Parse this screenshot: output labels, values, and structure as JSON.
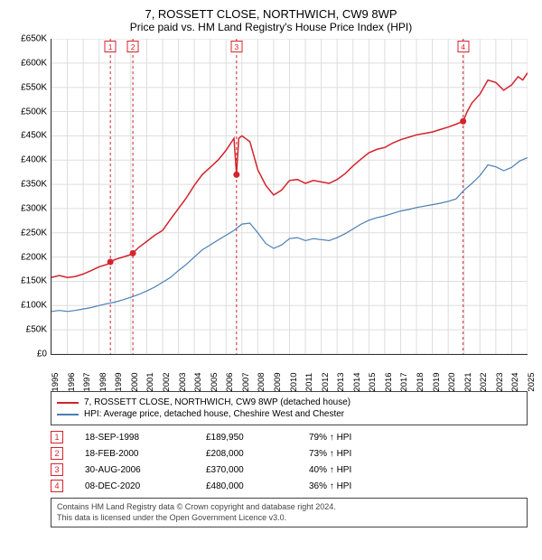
{
  "title": "7, ROSSETT CLOSE, NORTHWICH, CW9 8WP",
  "subtitle": "Price paid vs. HM Land Registry's House Price Index (HPI)",
  "chart": {
    "type": "line",
    "background_color": "#ffffff",
    "grid_color": "#dddddd",
    "axis_color": "#333333",
    "label_fontsize": 10,
    "x": {
      "min": 1995,
      "max": 2025,
      "ticks": [
        1995,
        1996,
        1997,
        1998,
        1999,
        2000,
        2001,
        2002,
        2003,
        2004,
        2005,
        2006,
        2007,
        2008,
        2009,
        2010,
        2011,
        2012,
        2013,
        2014,
        2015,
        2016,
        2017,
        2018,
        2019,
        2020,
        2021,
        2022,
        2023,
        2024,
        2025
      ],
      "tick_label_rotation": -90
    },
    "y": {
      "min": 0,
      "max": 650000,
      "ticks": [
        0,
        50000,
        100000,
        150000,
        200000,
        250000,
        300000,
        350000,
        400000,
        450000,
        500000,
        550000,
        600000,
        650000
      ],
      "tick_labels": [
        "£0",
        "£50K",
        "£100K",
        "£150K",
        "£200K",
        "£250K",
        "£300K",
        "£350K",
        "£400K",
        "£450K",
        "£500K",
        "£550K",
        "£600K",
        "£650K"
      ]
    },
    "series": [
      {
        "name": "7, ROSSETT CLOSE, NORTHWICH, CW9 8WP (detached house)",
        "color": "#d4232c",
        "line_width": 1.5,
        "data": [
          [
            1995,
            158000
          ],
          [
            1995.5,
            162000
          ],
          [
            1996,
            158000
          ],
          [
            1996.5,
            160000
          ],
          [
            1997,
            165000
          ],
          [
            1997.5,
            172000
          ],
          [
            1998,
            180000
          ],
          [
            1998.5,
            185000
          ],
          [
            1998.71,
            189950
          ],
          [
            1999,
            195000
          ],
          [
            1999.5,
            200000
          ],
          [
            2000,
            205000
          ],
          [
            2000.13,
            208000
          ],
          [
            2000.5,
            220000
          ],
          [
            2001,
            232000
          ],
          [
            2001.5,
            245000
          ],
          [
            2002,
            255000
          ],
          [
            2002.5,
            278000
          ],
          [
            2003,
            300000
          ],
          [
            2003.5,
            322000
          ],
          [
            2004,
            348000
          ],
          [
            2004.5,
            370000
          ],
          [
            2005,
            385000
          ],
          [
            2005.5,
            400000
          ],
          [
            2006,
            420000
          ],
          [
            2006.5,
            445000
          ],
          [
            2006.66,
            370000
          ],
          [
            2006.8,
            445000
          ],
          [
            2007,
            450000
          ],
          [
            2007.5,
            438000
          ],
          [
            2008,
            380000
          ],
          [
            2008.5,
            348000
          ],
          [
            2009,
            328000
          ],
          [
            2009.5,
            338000
          ],
          [
            2010,
            358000
          ],
          [
            2010.5,
            360000
          ],
          [
            2011,
            352000
          ],
          [
            2011.5,
            358000
          ],
          [
            2012,
            355000
          ],
          [
            2012.5,
            352000
          ],
          [
            2013,
            360000
          ],
          [
            2013.5,
            372000
          ],
          [
            2014,
            388000
          ],
          [
            2014.5,
            402000
          ],
          [
            2015,
            415000
          ],
          [
            2015.5,
            422000
          ],
          [
            2016,
            426000
          ],
          [
            2016.5,
            435000
          ],
          [
            2017,
            442000
          ],
          [
            2017.5,
            447000
          ],
          [
            2018,
            452000
          ],
          [
            2018.5,
            455000
          ],
          [
            2019,
            458000
          ],
          [
            2019.5,
            463000
          ],
          [
            2020,
            468000
          ],
          [
            2020.5,
            474000
          ],
          [
            2020.94,
            480000
          ],
          [
            2021.2,
            500000
          ],
          [
            2021.5,
            518000
          ],
          [
            2022,
            536000
          ],
          [
            2022.5,
            565000
          ],
          [
            2023,
            560000
          ],
          [
            2023.5,
            544000
          ],
          [
            2024,
            555000
          ],
          [
            2024.4,
            572000
          ],
          [
            2024.7,
            565000
          ],
          [
            2025,
            580000
          ]
        ]
      },
      {
        "name": "HPI: Average price, detached house, Cheshire West and Chester",
        "color": "#4a7fb5",
        "line_width": 1.2,
        "data": [
          [
            1995,
            88000
          ],
          [
            1995.5,
            90000
          ],
          [
            1996,
            88000
          ],
          [
            1996.5,
            90000
          ],
          [
            1997,
            93000
          ],
          [
            1997.5,
            96000
          ],
          [
            1998,
            100000
          ],
          [
            1998.5,
            104000
          ],
          [
            1999,
            107000
          ],
          [
            1999.5,
            112000
          ],
          [
            2000,
            117000
          ],
          [
            2000.5,
            123000
          ],
          [
            2001,
            130000
          ],
          [
            2001.5,
            138000
          ],
          [
            2002,
            148000
          ],
          [
            2002.5,
            158000
          ],
          [
            2003,
            172000
          ],
          [
            2003.5,
            185000
          ],
          [
            2004,
            200000
          ],
          [
            2004.5,
            215000
          ],
          [
            2005,
            225000
          ],
          [
            2005.5,
            235000
          ],
          [
            2006,
            245000
          ],
          [
            2006.5,
            255000
          ],
          [
            2007,
            268000
          ],
          [
            2007.5,
            270000
          ],
          [
            2008,
            250000
          ],
          [
            2008.5,
            228000
          ],
          [
            2009,
            218000
          ],
          [
            2009.5,
            225000
          ],
          [
            2010,
            238000
          ],
          [
            2010.5,
            240000
          ],
          [
            2011,
            234000
          ],
          [
            2011.5,
            238000
          ],
          [
            2012,
            236000
          ],
          [
            2012.5,
            234000
          ],
          [
            2013,
            240000
          ],
          [
            2013.5,
            248000
          ],
          [
            2014,
            258000
          ],
          [
            2014.5,
            268000
          ],
          [
            2015,
            276000
          ],
          [
            2015.5,
            281000
          ],
          [
            2016,
            285000
          ],
          [
            2016.5,
            290000
          ],
          [
            2017,
            295000
          ],
          [
            2017.5,
            298000
          ],
          [
            2018,
            302000
          ],
          [
            2018.5,
            305000
          ],
          [
            2019,
            308000
          ],
          [
            2019.5,
            311000
          ],
          [
            2020,
            315000
          ],
          [
            2020.5,
            320000
          ],
          [
            2021,
            338000
          ],
          [
            2021.5,
            352000
          ],
          [
            2022,
            368000
          ],
          [
            2022.5,
            390000
          ],
          [
            2023,
            386000
          ],
          [
            2023.5,
            378000
          ],
          [
            2024,
            385000
          ],
          [
            2024.5,
            398000
          ],
          [
            2025,
            405000
          ]
        ]
      }
    ],
    "transaction_markers": [
      {
        "n": "1",
        "x": 1998.71,
        "y": 189950,
        "line_color": "#d4232c",
        "dash": "3,3"
      },
      {
        "n": "2",
        "x": 2000.13,
        "y": 208000,
        "line_color": "#d4232c",
        "dash": "3,3"
      },
      {
        "n": "3",
        "x": 2006.66,
        "y": 370000,
        "line_color": "#d4232c",
        "dash": "3,3"
      },
      {
        "n": "4",
        "x": 2020.94,
        "y": 480000,
        "line_color": "#d4232c",
        "dash": "3,3"
      }
    ],
    "marker_point_radius": 3.5,
    "marker_point_fill": "#d4232c",
    "marker_label_border": "#d4232c",
    "marker_label_text_color": "#d4232c"
  },
  "legend": {
    "items": [
      {
        "color": "#d4232c",
        "label": "7, ROSSETT CLOSE, NORTHWICH, CW9 8WP (detached house)"
      },
      {
        "color": "#4a7fb5",
        "label": "HPI: Average price, detached house, Cheshire West and Chester"
      }
    ]
  },
  "transactions_table": {
    "rows": [
      {
        "n": "1",
        "date": "18-SEP-1998",
        "price": "£189,950",
        "hpi": "79%  ↑  HPI"
      },
      {
        "n": "2",
        "date": "18-FEB-2000",
        "price": "£208,000",
        "hpi": "73%  ↑  HPI"
      },
      {
        "n": "3",
        "date": "30-AUG-2006",
        "price": "£370,000",
        "hpi": "40%  ↑  HPI"
      },
      {
        "n": "4",
        "date": "08-DEC-2020",
        "price": "£480,000",
        "hpi": "36%  ↑  HPI"
      }
    ],
    "marker_border_color": "#d4232c"
  },
  "attribution": {
    "line1": "Contains HM Land Registry data © Crown copyright and database right 2024.",
    "line2": "This data is licensed under the Open Government Licence v3.0."
  }
}
